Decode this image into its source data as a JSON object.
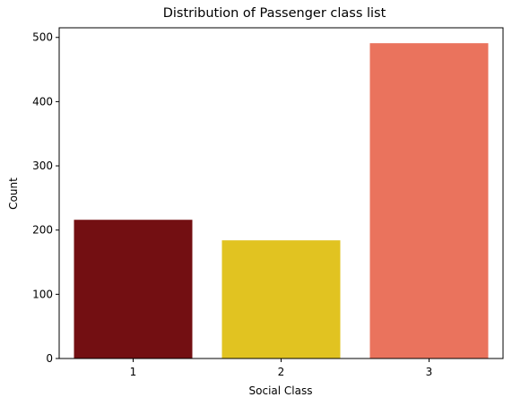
{
  "chart_data": {
    "type": "bar",
    "title": "Distribution of Passenger class list",
    "xlabel": "Social Class",
    "ylabel": "Count",
    "categories": [
      "1",
      "2",
      "3"
    ],
    "values": [
      216,
      184,
      491
    ],
    "colors": [
      "#730f12",
      "#e1c321",
      "#ea735d"
    ],
    "ylim": [
      0,
      515
    ],
    "yticks": [
      0,
      100,
      200,
      300,
      400,
      500
    ],
    "grid": false,
    "legend": "none"
  }
}
